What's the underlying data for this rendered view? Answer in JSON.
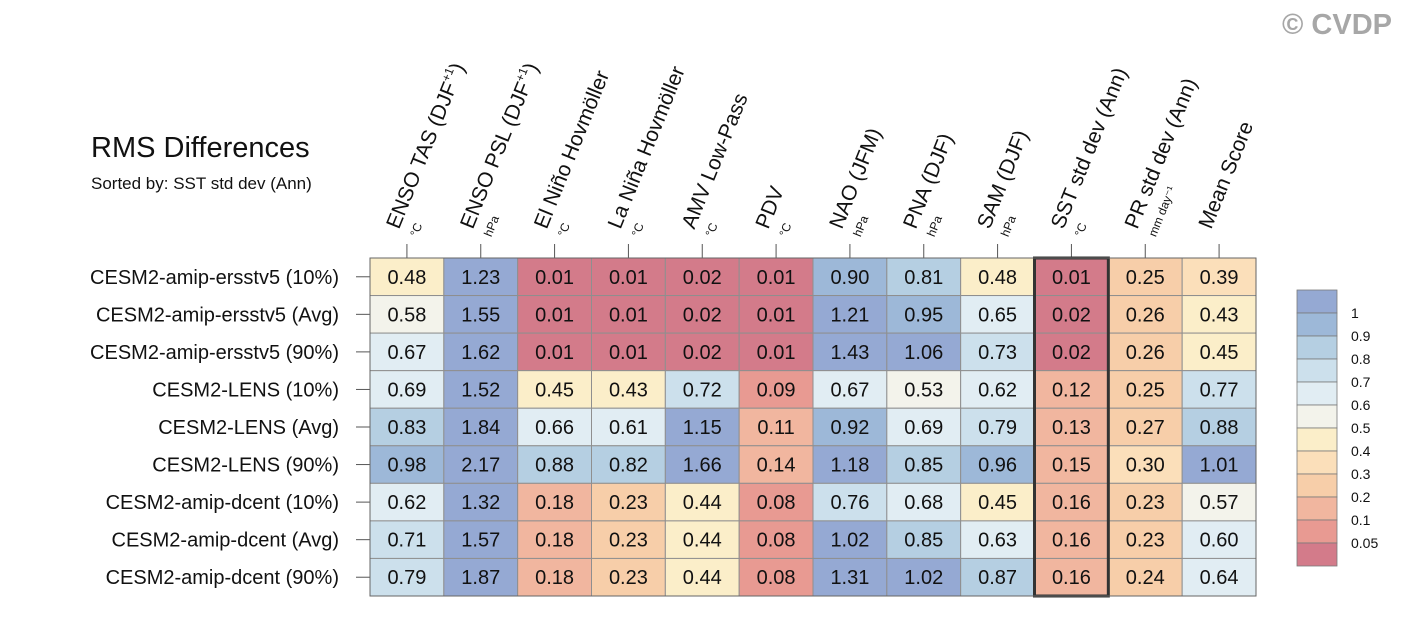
{
  "watermark": "© CVDP",
  "chart_data": {
    "type": "heatmap",
    "title": "RMS Differences",
    "subtitle": "Sorted by: SST std dev (Ann)",
    "highlight_column": "SST std dev (Ann)",
    "columns": [
      {
        "label": "ENSO TAS (DJF",
        "sup": "+1",
        "after": ")",
        "unit": "°C"
      },
      {
        "label": "ENSO PSL (DJF",
        "sup": "+1",
        "after": ")",
        "unit": "hPa"
      },
      {
        "label": "El Niño Hovmöller",
        "sup": "",
        "after": "",
        "unit": "°C"
      },
      {
        "label": "La Niña Hovmöller",
        "sup": "",
        "after": "",
        "unit": "°C"
      },
      {
        "label": "AMV Low-Pass",
        "sup": "",
        "after": "",
        "unit": "°C"
      },
      {
        "label": "PDV",
        "sup": "",
        "after": "",
        "unit": "°C"
      },
      {
        "label": "NAO (JFM)",
        "sup": "",
        "after": "",
        "unit": "hPa"
      },
      {
        "label": "PNA (DJF)",
        "sup": "",
        "after": "",
        "unit": "hPa"
      },
      {
        "label": "SAM (DJF)",
        "sup": "",
        "after": "",
        "unit": "hPa"
      },
      {
        "label": "SST std dev (Ann)",
        "sup": "",
        "after": "",
        "unit": "°C"
      },
      {
        "label": "PR std dev (Ann)",
        "sup": "",
        "after": "",
        "unit": "mm day⁻¹"
      },
      {
        "label": "Mean Score",
        "sup": "",
        "after": "",
        "unit": ""
      }
    ],
    "rows": [
      "CESM2-amip-ersstv5 (10%)",
      "CESM2-amip-ersstv5 (Avg)",
      "CESM2-amip-ersstv5 (90%)",
      "CESM2-LENS (10%)",
      "CESM2-LENS (Avg)",
      "CESM2-LENS (90%)",
      "CESM2-amip-dcent (10%)",
      "CESM2-amip-dcent (Avg)",
      "CESM2-amip-dcent (90%)"
    ],
    "values": [
      [
        0.48,
        1.23,
        0.01,
        0.01,
        0.02,
        0.01,
        0.9,
        0.81,
        0.48,
        0.01,
        0.25,
        0.39
      ],
      [
        0.58,
        1.55,
        0.01,
        0.01,
        0.02,
        0.01,
        1.21,
        0.95,
        0.65,
        0.02,
        0.26,
        0.43
      ],
      [
        0.67,
        1.62,
        0.01,
        0.01,
        0.02,
        0.01,
        1.43,
        1.06,
        0.73,
        0.02,
        0.26,
        0.45
      ],
      [
        0.69,
        1.52,
        0.45,
        0.43,
        0.72,
        0.09,
        0.67,
        0.53,
        0.62,
        0.12,
        0.25,
        0.77
      ],
      [
        0.83,
        1.84,
        0.66,
        0.61,
        1.15,
        0.11,
        0.92,
        0.69,
        0.79,
        0.13,
        0.27,
        0.88
      ],
      [
        0.98,
        2.17,
        0.88,
        0.82,
        1.66,
        0.14,
        1.18,
        0.85,
        0.96,
        0.15,
        0.3,
        1.01
      ],
      [
        0.62,
        1.32,
        0.18,
        0.23,
        0.44,
        0.08,
        0.76,
        0.68,
        0.45,
        0.16,
        0.23,
        0.57
      ],
      [
        0.71,
        1.57,
        0.18,
        0.23,
        0.44,
        0.08,
        1.02,
        0.85,
        0.63,
        0.16,
        0.23,
        0.6
      ],
      [
        0.79,
        1.87,
        0.18,
        0.23,
        0.44,
        0.08,
        1.31,
        1.02,
        0.87,
        0.16,
        0.24,
        0.64
      ]
    ],
    "colorbar": {
      "levels": [
        0.05,
        0.1,
        0.2,
        0.3,
        0.4,
        0.5,
        0.6,
        0.7,
        0.8,
        0.9,
        1
      ],
      "labels": [
        "0.05",
        "0.1",
        "0.2",
        "0.3",
        "0.4",
        "0.5",
        "0.6",
        "0.7",
        "0.8",
        "0.9",
        "1"
      ],
      "colors": [
        "#d37b8a",
        "#e89a92",
        "#f1b69f",
        "#f7cea9",
        "#fbdfba",
        "#fbeec9",
        "#f3f3eb",
        "#e1edf3",
        "#cce0ec",
        "#b5cfe2",
        "#9db8d8",
        "#95a9d3"
      ]
    }
  }
}
